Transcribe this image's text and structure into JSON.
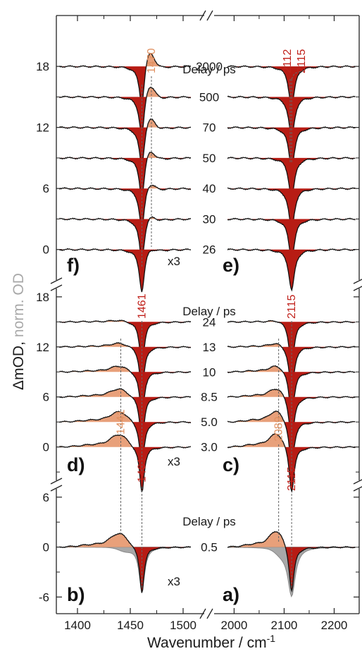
{
  "colors": {
    "bleach": "#b71c14",
    "induced": "#e8a07a",
    "ftir": "#a8a8a8",
    "peak_red": "#c0201a",
    "peak_orange": "#e09060",
    "axis": "#222222"
  },
  "y_title": {
    "main": "ΔmOD,",
    "secondary": "norm. OD"
  },
  "x_title": {
    "text": "Wavenumber / cm",
    "sup": "-1"
  },
  "chart_data": {
    "type": "line",
    "x_axis": {
      "left_range": [
        1380,
        1520
      ],
      "right_range": [
        1960,
        2250
      ],
      "left_ticks": [
        "1400",
        "1450",
        "1500"
      ],
      "right_ticks": [
        "2000",
        "2100",
        "2200"
      ]
    },
    "multiplier": "x3",
    "panels": {
      "top": {
        "left_letter": "f)",
        "right_letter": "e)",
        "delay_title": "Delay / ps",
        "y_ticks": [
          "18",
          "12",
          "6",
          "0"
        ],
        "ylim": [
          -3,
          23
        ],
        "delays": [
          "2000",
          "500",
          "70",
          "50",
          "40",
          "30",
          "26"
        ],
        "offsets": [
          18,
          15,
          12,
          9,
          6,
          3,
          0
        ],
        "left_peaks": [
          {
            "label": "1470",
            "x": 1470,
            "color": "orange"
          },
          {
            "x": 1461
          }
        ],
        "right_peaks": [
          {
            "label": "2112",
            "x": 2112,
            "color": "red"
          },
          {
            "label": "2115",
            "x": 2115,
            "color": "red"
          }
        ]
      },
      "middle": {
        "left_letter": "d)",
        "right_letter": "c)",
        "delay_title": "Delay / ps",
        "y_ticks": [
          "18",
          "12",
          "6",
          "0"
        ],
        "ylim": [
          -4,
          19
        ],
        "delays": [
          "24",
          "13",
          "10",
          "8.5",
          "5.0",
          "3.0"
        ],
        "offsets": [
          15,
          12,
          9,
          6,
          3,
          0
        ],
        "left_peaks": [
          {
            "label": "1461",
            "x": 1461,
            "color": "red"
          },
          {
            "x": 1441
          }
        ],
        "right_peaks": [
          {
            "label": "2115",
            "x": 2115,
            "color": "red"
          },
          {
            "x": 2089
          }
        ]
      },
      "bottom": {
        "left_letter": "b)",
        "right_letter": "a)",
        "delay_title": "Delay / ps",
        "y_ticks": [
          "6",
          "0",
          "-6"
        ],
        "ylim": [
          -8,
          7
        ],
        "delays": [
          "0.5"
        ],
        "offsets": [
          0
        ],
        "left_peaks": [
          {
            "label": "1441",
            "x": 1441,
            "color": "orange"
          },
          {
            "label": "1461",
            "x": 1461,
            "color": "red"
          }
        ],
        "right_peaks": [
          {
            "label": "2089",
            "x": 2089,
            "color": "orange"
          },
          {
            "label": "2115",
            "x": 2115,
            "color": "red"
          }
        ]
      }
    }
  }
}
